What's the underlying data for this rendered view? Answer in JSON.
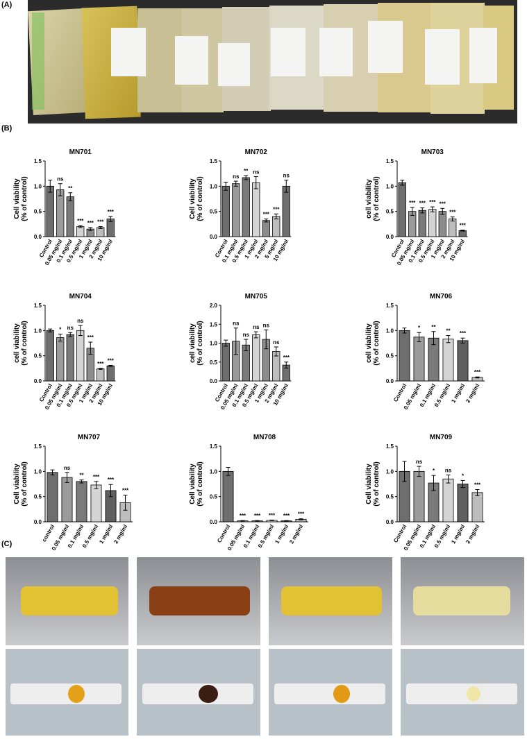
{
  "panels": {
    "a": "(A)",
    "b": "(B)",
    "c": "(C)"
  },
  "chart_data": [
    {
      "type": "bar",
      "title": "MN701",
      "y_label": [
        "Cell viability",
        "(% of control)"
      ],
      "categories": [
        "Control",
        "0.05 mg/ml",
        "0.1 mg/ml",
        "0.5 mg/ml",
        "1 mg/ml",
        "2 mg/ml",
        "10 mg/ml"
      ],
      "values": [
        1.0,
        0.93,
        0.79,
        0.2,
        0.15,
        0.18,
        0.35
      ],
      "errors": [
        0.12,
        0.12,
        0.08,
        0.02,
        0.03,
        0.02,
        0.05
      ],
      "significance": [
        null,
        "ns",
        "**",
        "***",
        "***",
        "***",
        "***"
      ],
      "colors": [
        "#6e6e6e",
        "#9b9b9b",
        "#7a7a7a",
        "#d4d4d4",
        "#8c8c8c",
        "#bdbdbd",
        "#6e6e6e"
      ],
      "ylim": [
        0,
        1.5
      ],
      "yticks": [
        {
          "value": 0,
          "label": "0.0"
        },
        {
          "value": 0.5,
          "label": "0.5"
        },
        {
          "value": 1,
          "label": "1.0"
        },
        {
          "value": 1.5,
          "label": "1.5"
        }
      ]
    },
    {
      "type": "bar",
      "title": "MN702",
      "y_label": [
        "Cell viability",
        "(% of control)"
      ],
      "categories": [
        "Control",
        "0.1 mg/ml",
        "0.5 mg/ml",
        "1 mg/ml",
        "2 mg/ml",
        "5 mg/ml",
        "10 mg/ml"
      ],
      "values": [
        1.0,
        1.05,
        1.17,
        1.07,
        0.32,
        0.4,
        1.0
      ],
      "errors": [
        0.08,
        0.05,
        0.04,
        0.12,
        0.03,
        0.05,
        0.12
      ],
      "significance": [
        null,
        "ns",
        "**",
        "ns",
        "***",
        "***",
        "ns"
      ],
      "colors": [
        "#6e6e6e",
        "#9b9b9b",
        "#7a7a7a",
        "#d4d4d4",
        "#8c8c8c",
        "#bdbdbd",
        "#6e6e6e"
      ],
      "ylim": [
        0,
        1.5
      ],
      "yticks": [
        {
          "value": 0,
          "label": "0.0"
        },
        {
          "value": 0.5,
          "label": "0.5"
        },
        {
          "value": 1,
          "label": "1.0"
        },
        {
          "value": 1.5,
          "label": "1.5"
        }
      ]
    },
    {
      "type": "bar",
      "title": "MN703",
      "y_label": [
        "cell viability",
        "(% of control)"
      ],
      "categories": [
        "Control",
        "0.05 mg/ml",
        "0.1 mg/ml",
        "0.5 mg/ml",
        "1 mg/ml",
        "2 mg/ml",
        "10 mg/ml"
      ],
      "values": [
        1.07,
        0.5,
        0.52,
        0.54,
        0.5,
        0.35,
        0.12
      ],
      "errors": [
        0.05,
        0.08,
        0.05,
        0.05,
        0.06,
        0.04,
        0.01
      ],
      "significance": [
        null,
        "***",
        "***",
        "***",
        "***",
        "***",
        "***"
      ],
      "colors": [
        "#6e6e6e",
        "#9b9b9b",
        "#7a7a7a",
        "#d4d4d4",
        "#8c8c8c",
        "#bdbdbd",
        "#6e6e6e"
      ],
      "ylim": [
        0,
        1.5
      ],
      "yticks": [
        {
          "value": 0,
          "label": "0.0"
        },
        {
          "value": 0.5,
          "label": "0.5"
        },
        {
          "value": 1,
          "label": "1.0"
        },
        {
          "value": 1.5,
          "label": "1.5"
        }
      ]
    },
    {
      "type": "bar",
      "title": "MN704",
      "y_label": [
        "cell viability",
        "(% of control)"
      ],
      "categories": [
        "Control",
        "0.05 mg/ml",
        "0.1 mg/ml",
        "0.5 mg/ml",
        "1 mg/ml",
        "2 mg/ml",
        "10 mg/ml"
      ],
      "values": [
        1.0,
        0.86,
        0.92,
        1.0,
        0.65,
        0.24,
        0.3
      ],
      "errors": [
        0.03,
        0.07,
        0.04,
        0.1,
        0.12,
        0.01,
        0.01
      ],
      "significance": [
        null,
        "*",
        "ns",
        "ns",
        "***",
        "***",
        "***"
      ],
      "colors": [
        "#6e6e6e",
        "#9b9b9b",
        "#7a7a7a",
        "#d4d4d4",
        "#8c8c8c",
        "#bdbdbd",
        "#6e6e6e"
      ],
      "ylim": [
        0,
        1.5
      ],
      "yticks": [
        {
          "value": 0,
          "label": "0.0"
        },
        {
          "value": 0.5,
          "label": "0.5"
        },
        {
          "value": 1,
          "label": "1.0"
        },
        {
          "value": 1.5,
          "label": "1.5"
        }
      ]
    },
    {
      "type": "bar",
      "title": "MN705",
      "y_label": [
        "cell viability",
        "(% of control)"
      ],
      "categories": [
        "Control",
        "0.05 mg/ml",
        "0.1 mg/ml",
        "0.5 mg/ml",
        "1 mg/ml",
        "2 mg/ml",
        "10 mg/ml"
      ],
      "values": [
        1.0,
        1.05,
        0.95,
        1.22,
        1.1,
        0.78,
        0.42
      ],
      "errors": [
        0.08,
        0.35,
        0.15,
        0.08,
        0.25,
        0.12,
        0.08
      ],
      "significance": [
        null,
        "ns",
        "ns",
        "ns",
        "ns",
        "ns",
        "***"
      ],
      "colors": [
        "#6e6e6e",
        "#9b9b9b",
        "#7a7a7a",
        "#d4d4d4",
        "#8c8c8c",
        "#bdbdbd",
        "#6e6e6e"
      ],
      "ylim": [
        0,
        2
      ],
      "yticks": [
        {
          "value": 0,
          "label": "0.0"
        },
        {
          "value": 0.5,
          "label": "0.5"
        },
        {
          "value": 1,
          "label": "1.0"
        },
        {
          "value": 1.5,
          "label": "1.5"
        },
        {
          "value": 2,
          "label": "2.0"
        }
      ]
    },
    {
      "type": "bar",
      "title": "MN706",
      "y_label": [
        "cell viability",
        "(% of control)"
      ],
      "categories": [
        "Control",
        "0.05 mg/ml",
        "0.1 mg/ml",
        "0.5 mg/ml",
        "1 mg/ml",
        "2 mg/ml"
      ],
      "values": [
        1.0,
        0.87,
        0.85,
        0.83,
        0.8,
        0.07
      ],
      "errors": [
        0.05,
        0.09,
        0.13,
        0.07,
        0.05,
        0.01
      ],
      "significance": [
        null,
        "*",
        "**",
        "**",
        "***",
        "***"
      ],
      "colors": [
        "#6e6e6e",
        "#9b9b9b",
        "#7a7a7a",
        "#d4d4d4",
        "#5f5f5f",
        "#bdbdbd"
      ],
      "ylim": [
        0,
        1.5
      ],
      "yticks": [
        {
          "value": 0,
          "label": "0.0"
        },
        {
          "value": 0.5,
          "label": "0.5"
        },
        {
          "value": 1,
          "label": "1.0"
        },
        {
          "value": 1.5,
          "label": "1.5"
        }
      ]
    },
    {
      "type": "bar",
      "title": "MN707",
      "y_label": [
        "Cell viability",
        "(% of control)"
      ],
      "categories": [
        "control",
        "0.05 mg/ml",
        "0.1 mg/ml",
        "0.5 mg/ml",
        "1 mg/ml",
        "2 mg/ml"
      ],
      "values": [
        0.98,
        0.88,
        0.8,
        0.73,
        0.62,
        0.38
      ],
      "errors": [
        0.05,
        0.1,
        0.03,
        0.07,
        0.12,
        0.15
      ],
      "significance": [
        null,
        "ns",
        "**",
        "***",
        "***",
        "***"
      ],
      "colors": [
        "#6e6e6e",
        "#9b9b9b",
        "#7a7a7a",
        "#d4d4d4",
        "#5f5f5f",
        "#bdbdbd"
      ],
      "ylim": [
        0,
        1.5
      ],
      "yticks": [
        {
          "value": 0,
          "label": "0.0"
        },
        {
          "value": 0.5,
          "label": "0.5"
        },
        {
          "value": 1,
          "label": "1.0"
        },
        {
          "value": 1.5,
          "label": "1.5"
        }
      ]
    },
    {
      "type": "bar",
      "title": "MN708",
      "y_label": [
        "Cell viability",
        "(% of control)"
      ],
      "categories": [
        "Control",
        "0.05 mg/ml",
        "0.1 mg/ml",
        "0.5 mg/ml",
        "1 mg/ml",
        "2 mg/ml"
      ],
      "values": [
        1.0,
        0.02,
        0.02,
        0.03,
        0.02,
        0.05
      ],
      "errors": [
        0.08,
        0.005,
        0.005,
        0.005,
        0.005,
        0.01
      ],
      "significance": [
        null,
        "***",
        "***",
        "***",
        "***",
        "***"
      ],
      "colors": [
        "#6e6e6e",
        "#9b9b9b",
        "#7a7a7a",
        "#d4d4d4",
        "#5f5f5f",
        "#bdbdbd"
      ],
      "ylim": [
        0,
        1.5
      ],
      "yticks": [
        {
          "value": 0,
          "label": "0.0"
        },
        {
          "value": 0.5,
          "label": "0.5"
        },
        {
          "value": 1,
          "label": "1.0"
        },
        {
          "value": 1.5,
          "label": "1.5"
        }
      ]
    },
    {
      "type": "bar",
      "title": "MN709",
      "y_label": [
        "Cell viability",
        "(% of control)"
      ],
      "categories": [
        "Control",
        "0.05 mg/ml",
        "0.1 mg/ml",
        "0.5 mg/ml",
        "1 mg/ml",
        "2 mg/ml"
      ],
      "values": [
        1.0,
        1.0,
        0.77,
        0.85,
        0.75,
        0.58
      ],
      "errors": [
        0.2,
        0.1,
        0.15,
        0.08,
        0.07,
        0.06
      ],
      "significance": [
        null,
        "ns",
        "*",
        "ns",
        "*",
        "***"
      ],
      "colors": [
        "#6e6e6e",
        "#9b9b9b",
        "#7a7a7a",
        "#d4d4d4",
        "#5f5f5f",
        "#bdbdbd"
      ],
      "ylim": [
        0,
        1.5
      ],
      "yticks": [
        {
          "value": 0,
          "label": "0.0"
        },
        {
          "value": 0.5,
          "label": "0.5"
        },
        {
          "value": 1,
          "label": "1.0"
        },
        {
          "value": 1.5,
          "label": "1.5"
        }
      ]
    }
  ]
}
